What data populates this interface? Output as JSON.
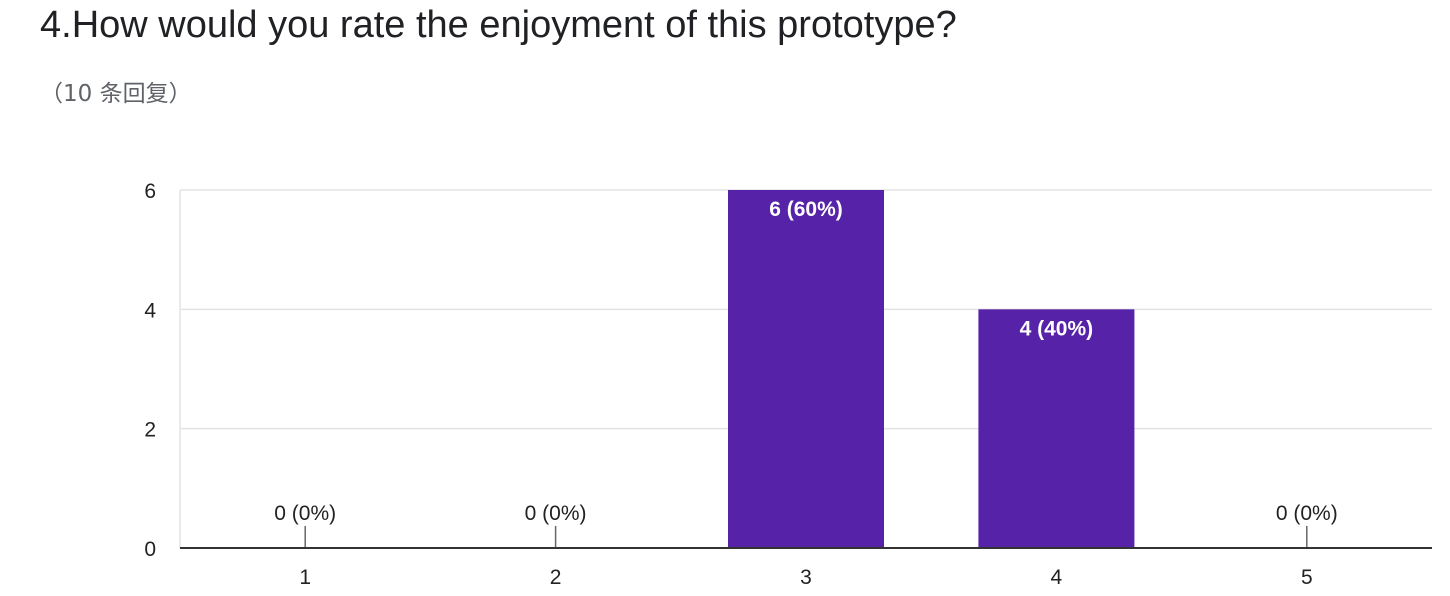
{
  "header": {
    "question": "4.How would you rate the enjoyment of this prototype?",
    "responses": "（10 条回复）"
  },
  "chart_data": {
    "type": "bar",
    "title": "",
    "xlabel": "",
    "ylabel": "",
    "categories": [
      "1",
      "2",
      "3",
      "4",
      "5"
    ],
    "values": [
      0,
      0,
      6,
      4,
      0
    ],
    "data_labels": [
      "0 (0%)",
      "0 (0%)",
      "6 (60%)",
      "4 (40%)",
      "0 (0%)"
    ],
    "ylim": [
      0,
      6
    ],
    "yticks": [
      "0",
      "2",
      "4",
      "6"
    ],
    "grid": true,
    "legend": "none",
    "bar_color": "#5522a8"
  }
}
